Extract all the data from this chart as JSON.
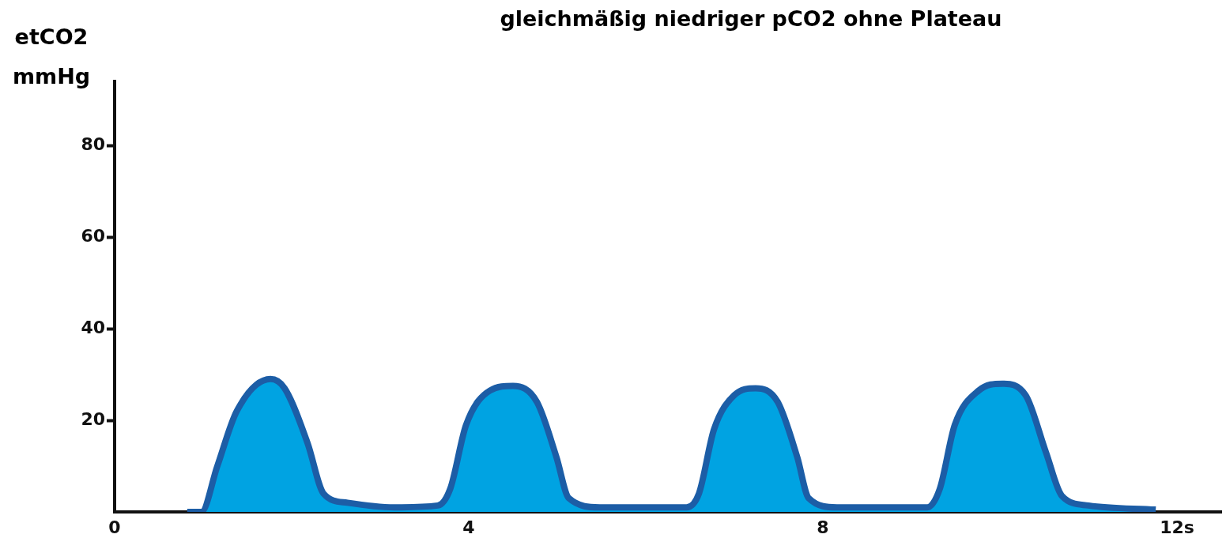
{
  "chart_data": {
    "type": "area",
    "title": "gleichmäßig niedriger pCO2 ohne Plateau",
    "ylabel": "etCO2 mmHg",
    "xlim": [
      0,
      12.5
    ],
    "xticks": [
      0,
      4,
      8,
      {
        "value": 12,
        "label": "12s"
      }
    ],
    "ylim": [
      0,
      94
    ],
    "yticks": [
      20,
      40,
      60,
      80
    ],
    "grid": false,
    "legend": false,
    "series": [
      {
        "color": "#00a3e2",
        "x": [
          0.82,
          0.98,
          1.16,
          1.38,
          1.76,
          1.92,
          2.18,
          2.36,
          2.63,
          3.16,
          3.65,
          3.79,
          3.97,
          4.24,
          4.5,
          4.77,
          4.99,
          5.13,
          5.48,
          6.46,
          6.6,
          6.77,
          7.0,
          7.24,
          7.49,
          7.71,
          7.84,
          8.16,
          9.18,
          9.32,
          9.49,
          9.76,
          10.03,
          10.29,
          10.52,
          10.7,
          11.0,
          11.76
        ],
        "values": [
          0,
          0,
          10,
          22,
          29,
          27,
          15,
          4,
          2,
          1,
          1.4,
          5,
          19,
          26.5,
          27.5,
          24,
          12,
          3,
          1,
          1,
          4,
          18,
          25.5,
          27,
          24,
          12,
          3,
          1,
          1,
          5,
          19,
          26.5,
          28,
          25.5,
          13,
          3.5,
          1.4,
          0.5
        ]
      }
    ]
  }
}
